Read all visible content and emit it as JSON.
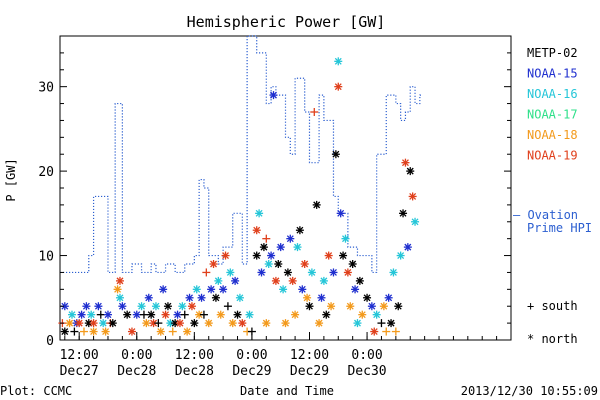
{
  "chart_data": {
    "type": "scatter",
    "title": "Hemispheric Power [GW]",
    "ylabel": "P [GW]",
    "xlabel": "Date and Time",
    "ylim": [
      0,
      36
    ],
    "yticks": [
      0,
      10,
      20,
      30
    ],
    "xlim": [
      "2013-12-27T08:00",
      "2013-12-31T06:00"
    ],
    "xticks": [
      {
        "t": "2013-12-27T12:00",
        "l1": "12:00",
        "l2": "Dec27"
      },
      {
        "t": "2013-12-28T00:00",
        "l1": "0:00",
        "l2": "Dec28"
      },
      {
        "t": "2013-12-28T12:00",
        "l1": "12:00",
        "l2": "Dec28"
      },
      {
        "t": "2013-12-29T00:00",
        "l1": "0:00",
        "l2": "Dec29"
      },
      {
        "t": "2013-12-29T12:00",
        "l1": "12:00",
        "l2": "Dec29"
      },
      {
        "t": "2013-12-30T00:00",
        "l1": "0:00",
        "l2": "Dec30"
      }
    ],
    "grid": false,
    "legend_position": "right",
    "satellites": [
      {
        "name": "METP-02",
        "color": "#000000"
      },
      {
        "name": "NOAA-15",
        "color": "#1f2fcf"
      },
      {
        "name": "NOAA-16",
        "color": "#25c6d8"
      },
      {
        "name": "NOAA-17",
        "color": "#2ee08a"
      },
      {
        "name": "NOAA-18",
        "color": "#f39a1c"
      },
      {
        "name": "NOAA-19",
        "color": "#e0401c"
      }
    ],
    "ovation": {
      "name": "Ovation Prime HPI",
      "label_line1": "— Ovation",
      "label_line2": "Prime HPI",
      "color": "#2c5fd0",
      "steps": [
        [
          "2013-12-27T08:00",
          8
        ],
        [
          "2013-12-27T14:00",
          10
        ],
        [
          "2013-12-27T15:00",
          17
        ],
        [
          "2013-12-27T18:00",
          8
        ],
        [
          "2013-12-27T19:30",
          28
        ],
        [
          "2013-12-27T21:00",
          8
        ],
        [
          "2013-12-27T23:00",
          9
        ],
        [
          "2013-12-28T01:00",
          8
        ],
        [
          "2013-12-28T03:00",
          9
        ],
        [
          "2013-12-28T04:00",
          8
        ],
        [
          "2013-12-28T06:00",
          9
        ],
        [
          "2013-12-28T08:00",
          8
        ],
        [
          "2013-12-28T10:00",
          9
        ],
        [
          "2013-12-28T12:00",
          10
        ],
        [
          "2013-12-28T13:00",
          19
        ],
        [
          "2013-12-28T14:00",
          18
        ],
        [
          "2013-12-28T15:00",
          10
        ],
        [
          "2013-12-28T17:00",
          9
        ],
        [
          "2013-12-28T18:00",
          11
        ],
        [
          "2013-12-28T20:00",
          15
        ],
        [
          "2013-12-28T22:00",
          9
        ],
        [
          "2013-12-28T23:00",
          36
        ],
        [
          "2013-12-29T01:00",
          34
        ],
        [
          "2013-12-29T03:00",
          28
        ],
        [
          "2013-12-29T04:00",
          30
        ],
        [
          "2013-12-29T05:00",
          29
        ],
        [
          "2013-12-29T07:00",
          24
        ],
        [
          "2013-12-29T08:00",
          22
        ],
        [
          "2013-12-29T09:00",
          31
        ],
        [
          "2013-12-29T11:00",
          27
        ],
        [
          "2013-12-29T12:00",
          21
        ],
        [
          "2013-12-29T14:00",
          29
        ],
        [
          "2013-12-29T15:00",
          26
        ],
        [
          "2013-12-29T17:00",
          17
        ],
        [
          "2013-12-29T18:00",
          15
        ],
        [
          "2013-12-29T20:00",
          11
        ],
        [
          "2013-12-29T22:00",
          10
        ],
        [
          "2013-12-30T01:00",
          8
        ],
        [
          "2013-12-30T02:00",
          22
        ],
        [
          "2013-12-30T04:00",
          29
        ],
        [
          "2013-12-30T06:00",
          28
        ],
        [
          "2013-12-30T07:00",
          26
        ],
        [
          "2013-12-30T08:00",
          27
        ],
        [
          "2013-12-30T09:00",
          30
        ],
        [
          "2013-12-30T10:00",
          28
        ],
        [
          "2013-12-30T11:00",
          29
        ],
        [
          "2013-12-30T11:30",
          29
        ]
      ]
    },
    "symbols": [
      {
        "symbol": "+",
        "hemisphere": "south"
      },
      {
        "symbol": "*",
        "hemisphere": "north"
      }
    ],
    "points": [
      [
        "2013-12-27T08:30",
        2,
        "NOAA-19",
        "+"
      ],
      [
        "2013-12-27T09:00",
        1,
        "METP-02",
        "*"
      ],
      [
        "2013-12-27T09:00",
        4,
        "NOAA-15",
        "*"
      ],
      [
        "2013-12-27T10:00",
        2,
        "NOAA-18",
        "*"
      ],
      [
        "2013-12-27T10:30",
        3,
        "NOAA-16",
        "*"
      ],
      [
        "2013-12-27T11:00",
        1,
        "METP-02",
        "+"
      ],
      [
        "2013-12-27T11:30",
        2,
        "NOAA-15",
        "*"
      ],
      [
        "2013-12-27T12:00",
        2,
        "NOAA-19",
        "*"
      ],
      [
        "2013-12-27T12:30",
        3,
        "NOAA-15",
        "*"
      ],
      [
        "2013-12-27T13:00",
        1,
        "NOAA-18",
        "+"
      ],
      [
        "2013-12-27T13:30",
        4,
        "NOAA-15",
        "*"
      ],
      [
        "2013-12-27T14:00",
        2,
        "METP-02",
        "*"
      ],
      [
        "2013-12-27T14:30",
        3,
        "NOAA-16",
        "*"
      ],
      [
        "2013-12-27T15:00",
        2,
        "NOAA-19",
        "*"
      ],
      [
        "2013-12-27T15:00",
        1,
        "NOAA-18",
        "*"
      ],
      [
        "2013-12-27T16:00",
        4,
        "NOAA-15",
        "*"
      ],
      [
        "2013-12-27T16:30",
        3,
        "METP-02",
        "+"
      ],
      [
        "2013-12-27T17:00",
        2,
        "NOAA-16",
        "*"
      ],
      [
        "2013-12-27T17:30",
        1,
        "NOAA-18",
        "*"
      ],
      [
        "2013-12-27T18:00",
        3,
        "NOAA-15",
        "*"
      ],
      [
        "2013-12-27T18:30",
        2,
        "NOAA-19",
        "+"
      ],
      [
        "2013-12-27T19:00",
        2,
        "METP-02",
        "*"
      ],
      [
        "2013-12-27T20:00",
        6,
        "NOAA-18",
        "*"
      ],
      [
        "2013-12-27T20:30",
        7,
        "NOAA-19",
        "*"
      ],
      [
        "2013-12-27T20:30",
        5,
        "NOAA-16",
        "*"
      ],
      [
        "2013-12-27T21:00",
        4,
        "NOAA-15",
        "*"
      ],
      [
        "2013-12-27T22:00",
        3,
        "METP-02",
        "*"
      ],
      [
        "2013-12-27T23:00",
        1,
        "NOAA-19",
        "*"
      ],
      [
        "2013-12-28T00:00",
        3,
        "NOAA-15",
        "*"
      ],
      [
        "2013-12-28T01:00",
        4,
        "NOAA-16",
        "*"
      ],
      [
        "2013-12-28T01:30",
        3,
        "METP-02",
        "+"
      ],
      [
        "2013-12-28T02:00",
        2,
        "NOAA-18",
        "*"
      ],
      [
        "2013-12-28T02:30",
        5,
        "NOAA-15",
        "*"
      ],
      [
        "2013-12-28T03:00",
        3,
        "METP-02",
        "*"
      ],
      [
        "2013-12-28T03:30",
        2,
        "NOAA-19",
        "*"
      ],
      [
        "2013-12-28T04:00",
        4,
        "NOAA-16",
        "*"
      ],
      [
        "2013-12-28T04:30",
        2,
        "METP-02",
        "+"
      ],
      [
        "2013-12-28T05:00",
        1,
        "NOAA-18",
        "*"
      ],
      [
        "2013-12-28T05:30",
        6,
        "NOAA-15",
        "*"
      ],
      [
        "2013-12-28T06:00",
        3,
        "NOAA-19",
        "*"
      ],
      [
        "2013-12-28T06:30",
        4,
        "METP-02",
        "*"
      ],
      [
        "2013-12-28T07:00",
        2,
        "NOAA-16",
        "*"
      ],
      [
        "2013-12-28T07:30",
        1,
        "NOAA-18",
        "+"
      ],
      [
        "2013-12-28T08:00",
        2,
        "METP-02",
        "*"
      ],
      [
        "2013-12-28T08:30",
        3,
        "NOAA-15",
        "*"
      ],
      [
        "2013-12-28T09:00",
        2,
        "NOAA-19",
        "*"
      ],
      [
        "2013-12-28T09:30",
        4,
        "NOAA-16",
        "*"
      ],
      [
        "2013-12-28T10:00",
        3,
        "METP-02",
        "+"
      ],
      [
        "2013-12-28T10:30",
        1,
        "NOAA-18",
        "*"
      ],
      [
        "2013-12-28T11:00",
        5,
        "NOAA-15",
        "*"
      ],
      [
        "2013-12-28T11:30",
        4,
        "NOAA-19",
        "*"
      ],
      [
        "2013-12-28T12:00",
        2,
        "METP-02",
        "*"
      ],
      [
        "2013-12-28T12:30",
        6,
        "NOAA-16",
        "*"
      ],
      [
        "2013-12-28T13:00",
        3,
        "NOAA-18",
        "*"
      ],
      [
        "2013-12-28T13:30",
        5,
        "NOAA-15",
        "*"
      ],
      [
        "2013-12-28T14:00",
        3,
        "METP-02",
        "+"
      ],
      [
        "2013-12-28T14:30",
        8,
        "NOAA-19",
        "+"
      ],
      [
        "2013-12-28T15:00",
        2,
        "NOAA-18",
        "*"
      ],
      [
        "2013-12-28T15:30",
        6,
        "NOAA-15",
        "*"
      ],
      [
        "2013-12-28T16:00",
        9,
        "NOAA-19",
        "*"
      ],
      [
        "2013-12-28T16:30",
        5,
        "METP-02",
        "*"
      ],
      [
        "2013-12-28T17:00",
        7,
        "NOAA-16",
        "*"
      ],
      [
        "2013-12-28T17:30",
        3,
        "NOAA-18",
        "*"
      ],
      [
        "2013-12-28T18:00",
        6,
        "NOAA-15",
        "*"
      ],
      [
        "2013-12-28T18:30",
        10,
        "NOAA-19",
        "*"
      ],
      [
        "2013-12-28T19:00",
        4,
        "METP-02",
        "+"
      ],
      [
        "2013-12-28T19:30",
        8,
        "NOAA-16",
        "*"
      ],
      [
        "2013-12-28T20:00",
        2,
        "NOAA-18",
        "*"
      ],
      [
        "2013-12-28T20:30",
        7,
        "NOAA-15",
        "*"
      ],
      [
        "2013-12-28T21:00",
        3,
        "METP-02",
        "*"
      ],
      [
        "2013-12-28T21:30",
        5,
        "NOAA-16",
        "*"
      ],
      [
        "2013-12-28T22:00",
        2,
        "NOAA-19",
        "*"
      ],
      [
        "2013-12-28T23:00",
        1,
        "NOAA-18",
        "+"
      ],
      [
        "2013-12-28T23:30",
        3,
        "NOAA-16",
        "*"
      ],
      [
        "2013-12-29T00:00",
        1,
        "METP-02",
        "+"
      ],
      [
        "2013-12-29T01:00",
        10,
        "METP-02",
        "*"
      ],
      [
        "2013-12-29T01:00",
        13,
        "NOAA-19",
        "*"
      ],
      [
        "2013-12-29T01:30",
        15,
        "NOAA-16",
        "*"
      ],
      [
        "2013-12-29T02:00",
        8,
        "NOAA-15",
        "*"
      ],
      [
        "2013-12-29T02:30",
        11,
        "METP-02",
        "*"
      ],
      [
        "2013-12-29T03:00",
        12,
        "NOAA-19",
        "+"
      ],
      [
        "2013-12-29T03:00",
        2,
        "NOAA-18",
        "*"
      ],
      [
        "2013-12-29T03:30",
        9,
        "NOAA-16",
        "*"
      ],
      [
        "2013-12-29T04:00",
        10,
        "NOAA-15",
        "*"
      ],
      [
        "2013-12-29T04:30",
        29,
        "NOAA-15",
        "*"
      ],
      [
        "2013-12-29T05:00",
        7,
        "NOAA-19",
        "*"
      ],
      [
        "2013-12-29T05:30",
        9,
        "METP-02",
        "*"
      ],
      [
        "2013-12-29T06:00",
        11,
        "NOAA-15",
        "*"
      ],
      [
        "2013-12-29T06:30",
        6,
        "NOAA-16",
        "*"
      ],
      [
        "2013-12-29T07:00",
        2,
        "NOAA-18",
        "*"
      ],
      [
        "2013-12-29T07:30",
        8,
        "METP-02",
        "*"
      ],
      [
        "2013-12-29T08:00",
        12,
        "NOAA-15",
        "*"
      ],
      [
        "2013-12-29T08:30",
        7,
        "NOAA-19",
        "*"
      ],
      [
        "2013-12-29T09:00",
        3,
        "NOAA-18",
        "*"
      ],
      [
        "2013-12-29T09:30",
        11,
        "NOAA-16",
        "*"
      ],
      [
        "2013-12-29T10:00",
        13,
        "METP-02",
        "*"
      ],
      [
        "2013-12-29T10:30",
        6,
        "NOAA-15",
        "*"
      ],
      [
        "2013-12-29T11:00",
        9,
        "NOAA-19",
        "*"
      ],
      [
        "2013-12-29T11:30",
        5,
        "NOAA-18",
        "*"
      ],
      [
        "2013-12-29T12:00",
        4,
        "METP-02",
        "*"
      ],
      [
        "2013-12-29T12:30",
        8,
        "NOAA-16",
        "*"
      ],
      [
        "2013-12-29T13:00",
        27,
        "NOAA-19",
        "+"
      ],
      [
        "2013-12-29T13:30",
        16,
        "METP-02",
        "*"
      ],
      [
        "2013-12-29T14:00",
        2,
        "NOAA-18",
        "*"
      ],
      [
        "2013-12-29T14:30",
        5,
        "NOAA-15",
        "*"
      ],
      [
        "2013-12-29T15:00",
        7,
        "NOAA-16",
        "*"
      ],
      [
        "2013-12-29T15:30",
        3,
        "METP-02",
        "*"
      ],
      [
        "2013-12-29T16:00",
        10,
        "NOAA-19",
        "*"
      ],
      [
        "2013-12-29T16:30",
        4,
        "NOAA-18",
        "*"
      ],
      [
        "2013-12-29T17:00",
        8,
        "NOAA-15",
        "*"
      ],
      [
        "2013-12-29T17:30",
        22,
        "METP-02",
        "*"
      ],
      [
        "2013-12-29T18:00",
        30,
        "NOAA-19",
        "*"
      ],
      [
        "2013-12-29T18:00",
        33,
        "NOAA-16",
        "*"
      ],
      [
        "2013-12-29T18:30",
        15,
        "NOAA-15",
        "*"
      ],
      [
        "2013-12-29T19:00",
        10,
        "METP-02",
        "*"
      ],
      [
        "2013-12-29T19:30",
        12,
        "NOAA-16",
        "*"
      ],
      [
        "2013-12-29T20:00",
        8,
        "NOAA-19",
        "*"
      ],
      [
        "2013-12-29T20:30",
        4,
        "NOAA-18",
        "*"
      ],
      [
        "2013-12-29T21:00",
        9,
        "METP-02",
        "*"
      ],
      [
        "2013-12-29T21:30",
        6,
        "NOAA-15",
        "*"
      ],
      [
        "2013-12-29T22:00",
        2,
        "NOAA-16",
        "*"
      ],
      [
        "2013-12-29T22:30",
        7,
        "METP-02",
        "*"
      ],
      [
        "2013-12-29T23:00",
        3,
        "NOAA-18",
        "*"
      ],
      [
        "2013-12-30T00:00",
        5,
        "METP-02",
        "*"
      ],
      [
        "2013-12-30T01:00",
        4,
        "NOAA-15",
        "*"
      ],
      [
        "2013-12-30T01:30",
        1,
        "NOAA-19",
        "*"
      ],
      [
        "2013-12-30T02:00",
        3,
        "NOAA-16",
        "*"
      ],
      [
        "2013-12-30T03:00",
        2,
        "METP-02",
        "+"
      ],
      [
        "2013-12-30T03:30",
        4,
        "NOAA-18",
        "*"
      ],
      [
        "2013-12-30T04:00",
        1,
        "NOAA-18",
        "+"
      ],
      [
        "2013-12-30T04:30",
        5,
        "NOAA-15",
        "*"
      ],
      [
        "2013-12-30T05:00",
        2,
        "METP-02",
        "*"
      ],
      [
        "2013-12-30T05:30",
        8,
        "NOAA-16",
        "*"
      ],
      [
        "2013-12-30T06:00",
        1,
        "NOAA-18",
        "+"
      ],
      [
        "2013-12-30T06:30",
        4,
        "METP-02",
        "*"
      ],
      [
        "2013-12-30T07:00",
        10,
        "NOAA-16",
        "*"
      ],
      [
        "2013-12-30T07:30",
        15,
        "METP-02",
        "*"
      ],
      [
        "2013-12-30T08:00",
        21,
        "NOAA-19",
        "*"
      ],
      [
        "2013-12-30T08:30",
        11,
        "NOAA-15",
        "*"
      ],
      [
        "2013-12-30T09:00",
        20,
        "METP-02",
        "*"
      ],
      [
        "2013-12-30T09:30",
        17,
        "NOAA-19",
        "*"
      ],
      [
        "2013-12-30T10:00",
        14,
        "NOAA-16",
        "*"
      ]
    ]
  },
  "footer": {
    "left": "Plot: CCMC",
    "center": "Date and Time",
    "right": "2013/12/30 10:55:09"
  },
  "legend_symbols": {
    "south_label": "+ south",
    "north_label": "* north"
  }
}
